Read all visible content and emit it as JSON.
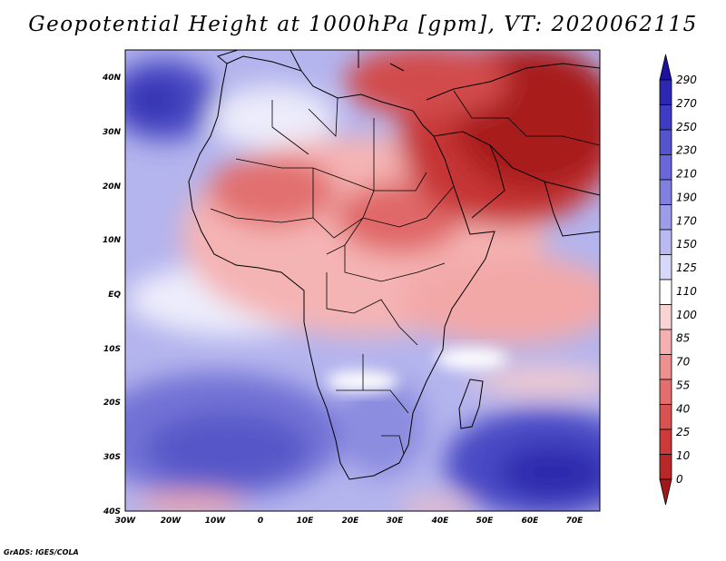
{
  "title": "Geopotential Height at 1000hPa [gpm], VT: 2020062115",
  "map": {
    "name": "Africa and surrounding oceans",
    "lat_range": [
      -40,
      45
    ],
    "lon_range": [
      -30,
      76
    ],
    "lat_labels": [
      "40N",
      "30N",
      "20N",
      "10N",
      "EQ",
      "10S",
      "20S",
      "30S",
      "40S"
    ],
    "lon_labels": [
      "30W",
      "20W",
      "10W",
      "0",
      "10E",
      "20E",
      "30E",
      "40E",
      "50E",
      "60E",
      "70E"
    ]
  },
  "colorbar": {
    "labels": [
      "290",
      "270",
      "250",
      "230",
      "210",
      "190",
      "170",
      "150",
      "125",
      "110",
      "100",
      "85",
      "70",
      "55",
      "40",
      "25",
      "10",
      "0"
    ],
    "colors": [
      "#1e10a0",
      "#2c28b4",
      "#3f3cc4",
      "#5454cc",
      "#6868d8",
      "#8080e0",
      "#9c9ce8",
      "#babaf2",
      "#d8d8fa",
      "#ffffff",
      "#fad4d4",
      "#f4b0b0",
      "#ee9090",
      "#e46e6e",
      "#d85252",
      "#cc3a3a",
      "#b82828",
      "#a01818"
    ]
  },
  "footer": "GrADS: IGES/COLA"
}
